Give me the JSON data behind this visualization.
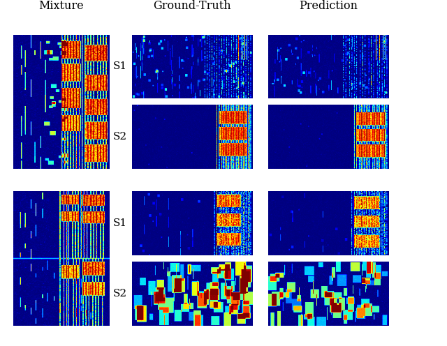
{
  "title_mixture": "Mixture",
  "title_gt": "Ground-Truth",
  "title_pred": "Prediction",
  "label_s1": "S1",
  "label_s2": "S2",
  "bg_color": "#ffffff",
  "figure_width": 6.4,
  "figure_height": 4.96,
  "dpi": 100
}
